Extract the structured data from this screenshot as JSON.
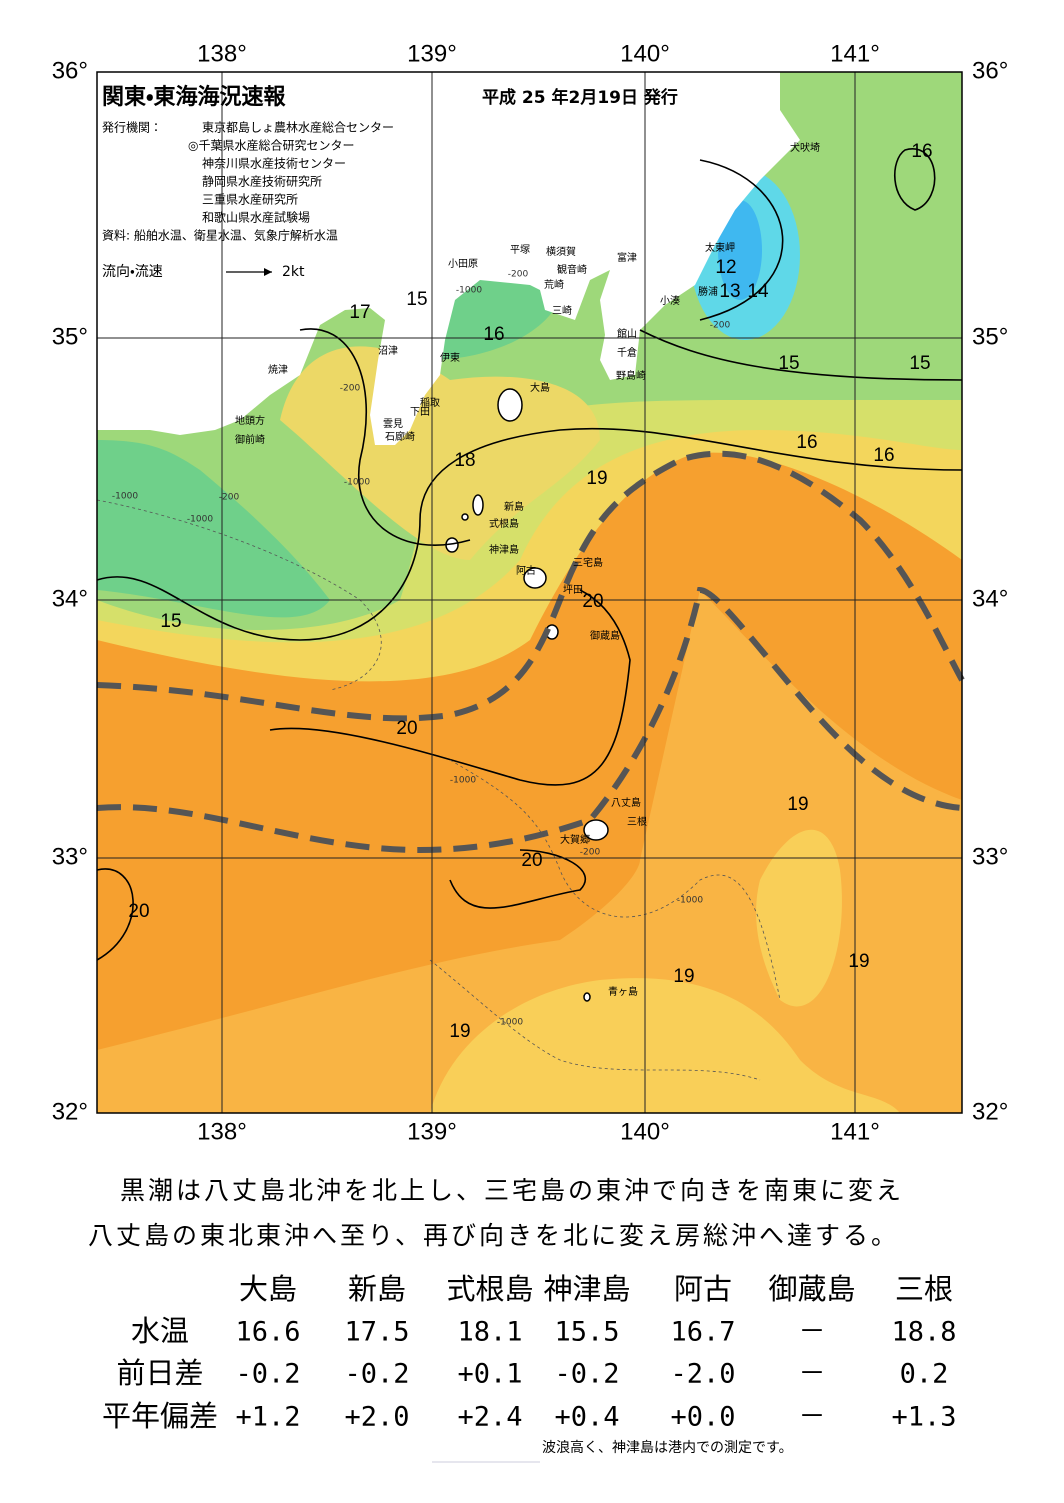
{
  "header": {
    "title": "関東・東海海況速報",
    "date": "平成 25 年2月19日 発行",
    "issuer_label": "発行機関：",
    "issuers": [
      "東京都島しょ農林水産総合センター",
      "◎千葉県水産総合研究センター",
      "神奈川県水産技術センター",
      "静岡県水産技術研究所",
      "三重県水産研究所",
      "和歌山県水産試験場"
    ],
    "source": "資料: 船舶水温、衛星水温、気象庁解析水温",
    "flow_label": "流向・流速",
    "flow_unit": "2kt"
  },
  "map": {
    "lon_labels": [
      "138°",
      "139°",
      "140°",
      "141°"
    ],
    "lat_labels": [
      "36°",
      "35°",
      "34°",
      "33°",
      "32°"
    ],
    "places": [
      "犬吠埼",
      "太東岬",
      "勝浦",
      "小湊",
      "館山",
      "千倉",
      "野島崎",
      "富津",
      "観音崎",
      "横須賀",
      "荒崎",
      "三崎",
      "平塚",
      "小田原",
      "沼津",
      "伊東",
      "稲取",
      "下田",
      "雲見",
      "石廊崎",
      "焼津",
      "地頭方",
      "御前崎",
      "大島",
      "新島",
      "式根島",
      "神津島",
      "三宅島",
      "阿古",
      "坪田",
      "御蔵島",
      "八丈島",
      "三根",
      "大賀郷",
      "青ヶ島"
    ],
    "isotherm_labels": [
      "16",
      "12",
      "13",
      "14",
      "17",
      "15",
      "16",
      "15",
      "15",
      "16",
      "16",
      "18",
      "19",
      "20",
      "15",
      "20",
      "19",
      "20",
      "20",
      "19",
      "19",
      "19"
    ],
    "depth_labels": [
      "-1000",
      "-200",
      "-200",
      "-1000",
      "-200",
      "-1000",
      "-1000",
      "-200",
      "-1000",
      "-1000",
      "-200",
      "-1000"
    ]
  },
  "summary": [
    "黒潮は八丈島北沖を北上し、三宅島の東沖で向きを南東に変え",
    "八丈島の東北東沖へ至り、再び向きを北に変え房総沖へ達する。"
  ],
  "table": {
    "header": [
      "大島",
      "新島",
      "式根島",
      "神津島",
      "阿古",
      "御蔵島",
      "三根"
    ],
    "rows": [
      [
        "水温",
        "16.6",
        "17.5",
        "18.1",
        "15.5",
        "16.7",
        "－",
        "18.8"
      ],
      [
        "前日差",
        "-0.2",
        "-0.2",
        "+0.1",
        "-0.2",
        "-2.0",
        "－",
        "0.2"
      ],
      [
        "平年偏差",
        "+1.2",
        "+2.0",
        "+2.4",
        "+0.4",
        "+0.0",
        "－",
        "+1.3"
      ]
    ]
  },
  "note": "波浪高く、神津島は港内での測定です。"
}
